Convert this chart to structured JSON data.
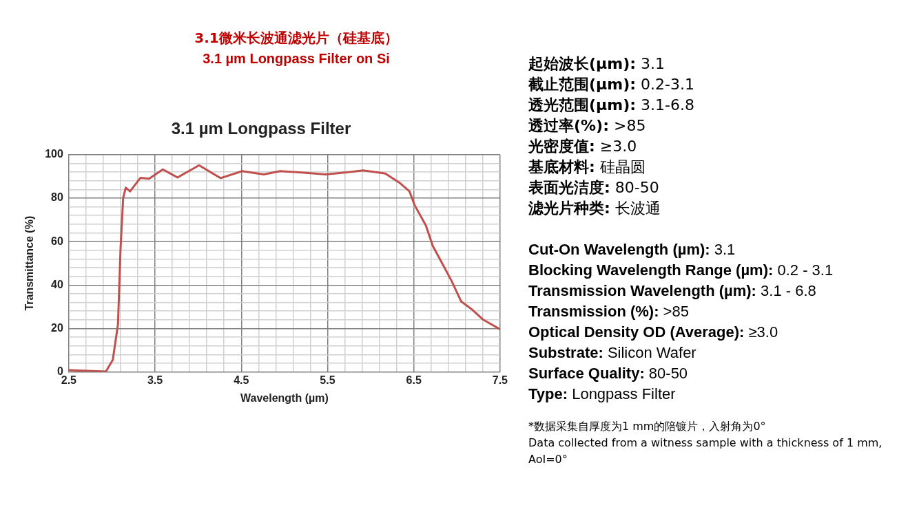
{
  "chart_data": {
    "type": "line",
    "title": "3.1 µm Longpass Filter",
    "xlabel": "Wavelength (µm)",
    "ylabel": "Transmittance (%)",
    "annotations": [
      "3.1微米长波通滤光片（硅基底）",
      "3.1 µm Longpass Filter on Si",
      "起始波长(µm): 3.1",
      "截止范围(µm): 0.2-3.1",
      "透光范围(µm): 3.1-6.8",
      "透过率(%): >85",
      "光密度值: ≥3.0",
      "基底材料: 硅晶圆",
      "表面光洁度: 80-50",
      "滤光片种类: 长波通",
      "Cut-On Wavelength (µm): 3.1",
      "Blocking Wavelength Range (µm): 0.2 - 3.1",
      "Transmission Wavelength (µm): 3.1 - 6.8",
      "Transmission (%): >85",
      "Optical Density OD (Average): ≥3.0",
      "Substrate: Silicon Wafer",
      "Surface Quality: 80-50",
      "Type: Longpass Filter",
      "*数据采集自厚度为1 mm的陪镀片，入射角为0°",
      "Data collected from a witness sample with a thickness of 1 mm, AoI=0°"
    ],
    "series": [
      {
        "color": "#c0504d",
        "x": [
          2.5,
          2.93,
          3.01,
          3.07,
          3.1,
          3.13,
          3.16,
          3.21,
          3.33,
          3.43,
          3.59,
          3.76,
          4.01,
          4.26,
          4.51,
          4.76,
          4.95,
          5.2,
          5.48,
          5.7,
          5.91,
          6.05,
          6.17,
          6.33,
          6.45,
          6.51,
          6.64,
          6.72,
          6.83,
          6.94,
          7.05,
          7.17,
          7.3,
          7.5
        ],
        "values": [
          0.8,
          0.2,
          5.6,
          21.9,
          56.9,
          80,
          84.8,
          83.1,
          89.3,
          88.9,
          93.2,
          89.5,
          95.1,
          89.2,
          92.4,
          90.9,
          92.4,
          91.8,
          90.9,
          91.8,
          92.7,
          92,
          91.3,
          87.2,
          83.1,
          76.7,
          67.4,
          58,
          49.9,
          41.7,
          32.4,
          28.9,
          24.2,
          19.6
        ]
      }
    ],
    "xlim": [
      2.5,
      7.5
    ],
    "xticks": [
      2.5,
      {
        "value": 2.7,
        "label": null
      },
      {
        "value": 2.9,
        "label": null
      },
      {
        "value": 3.1,
        "label": null
      },
      {
        "value": 3.3,
        "label": null
      },
      3.5,
      {
        "value": 3.7,
        "label": null
      },
      {
        "value": 3.9,
        "label": null
      },
      {
        "value": 4.1,
        "label": null
      },
      {
        "value": 4.3,
        "label": null
      },
      4.5,
      {
        "value": 4.7,
        "label": null
      },
      {
        "value": 4.9,
        "label": null
      },
      {
        "value": 5.1,
        "label": null
      },
      {
        "value": 5.3,
        "label": null
      },
      5.5,
      {
        "value": 5.7,
        "label": null
      },
      {
        "value": 5.9,
        "label": null
      },
      {
        "value": 6.1,
        "label": null
      },
      {
        "value": 6.3,
        "label": null
      },
      6.5,
      {
        "value": 6.7,
        "label": null
      },
      {
        "value": 6.9,
        "label": null
      },
      {
        "value": 7.1,
        "label": null
      },
      {
        "value": 7.3,
        "label": null
      },
      7.5
    ],
    "ylim": [
      0,
      100
    ],
    "yticks": [
      0,
      {
        "value": 4,
        "label": null
      },
      {
        "value": 8,
        "label": null
      },
      {
        "value": 12,
        "label": null
      },
      {
        "value": 16,
        "label": null
      },
      20,
      {
        "value": 24,
        "label": null
      },
      {
        "value": 28,
        "label": null
      },
      {
        "value": 32,
        "label": null
      },
      {
        "value": 36,
        "label": null
      },
      40,
      {
        "value": 44,
        "label": null
      },
      {
        "value": 48,
        "label": null
      },
      {
        "value": 52,
        "label": null
      },
      {
        "value": 56,
        "label": null
      },
      60,
      {
        "value": 64,
        "label": null
      },
      {
        "value": 68,
        "label": null
      },
      {
        "value": 72,
        "label": null
      },
      {
        "value": 76,
        "label": null
      },
      80,
      {
        "value": 84,
        "label": null
      },
      {
        "value": 88,
        "label": null
      },
      {
        "value": 92,
        "label": null
      },
      {
        "value": 96,
        "label": null
      },
      100
    ],
    "grid": true,
    "legend": false,
    "marker": "none",
    "line_style": "solid"
  }
}
